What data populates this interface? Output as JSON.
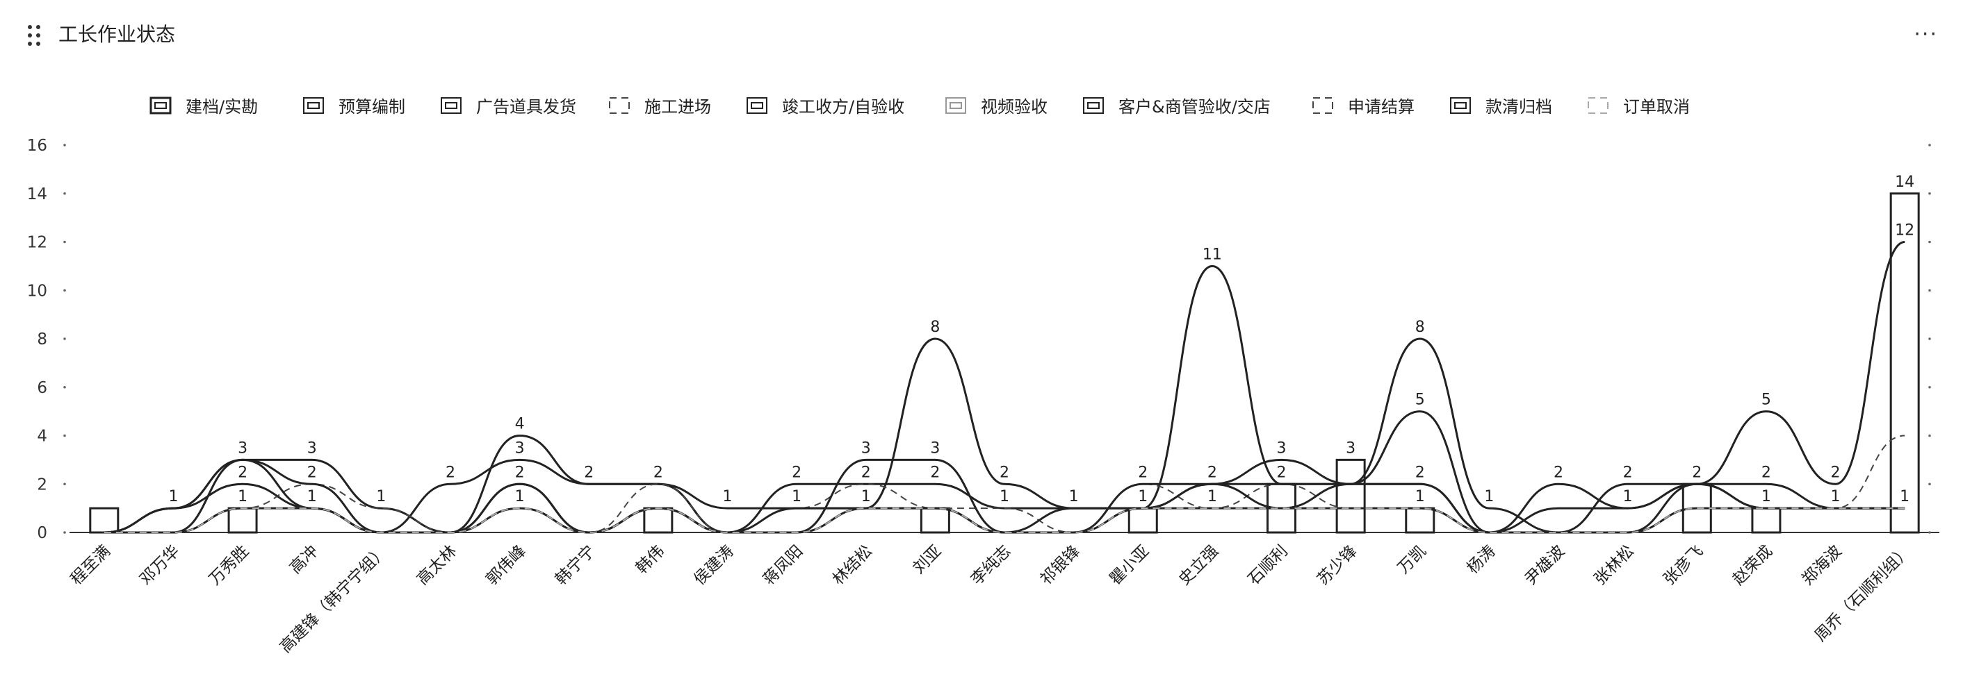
{
  "panel": {
    "title": "工长作业状态",
    "more_label": "···",
    "drag_icon": "drag-handle-icon",
    "more_icon": "more-icon"
  },
  "chart_data": {
    "type": "line",
    "title": "",
    "xlabel": "",
    "ylabel": "",
    "ylim": [
      0,
      16
    ],
    "yticks": [
      0,
      2,
      4,
      6,
      8,
      10,
      12,
      14,
      16
    ],
    "grid": false,
    "legend_position": "top",
    "categories": [
      "程至满",
      "邓万华",
      "万秀胜",
      "高冲",
      "高建锋（韩宁宁组）",
      "高太林",
      "郭伟峰",
      "韩宁宁",
      "韩伟",
      "侯建涛",
      "蒋凤阳",
      "林结松",
      "刘亚",
      "李纯志",
      "祁银锋",
      "瞿小亚",
      "史立强",
      "石顺利",
      "苏少锋",
      "万凯",
      "杨涛",
      "尹雄波",
      "张林松",
      "张彦飞",
      "赵荣成",
      "郑海波",
      "周乔（石顺利组）"
    ],
    "series": [
      {
        "name": "建档/实勘",
        "style": "bar",
        "values": [
          1,
          0,
          1,
          0,
          0,
          0,
          0,
          0,
          1,
          0,
          0,
          0,
          1,
          0,
          0,
          1,
          0,
          2,
          3,
          1,
          0,
          0,
          0,
          2,
          1,
          0,
          14
        ]
      },
      {
        "name": "预算编制",
        "style": "solid",
        "values": [
          0,
          1,
          2,
          1,
          0,
          2,
          3,
          2,
          2,
          0,
          2,
          2,
          2,
          1,
          1,
          1,
          2,
          3,
          2,
          5,
          0,
          2,
          1,
          2,
          2,
          1,
          1
        ]
      },
      {
        "name": "广告道具发货",
        "style": "solid",
        "values": [
          0,
          1,
          3,
          3,
          1,
          0,
          4,
          2,
          2,
          1,
          1,
          1,
          8,
          2,
          1,
          1,
          11,
          2,
          2,
          8,
          1,
          0,
          2,
          2,
          5,
          2,
          12
        ]
      },
      {
        "name": "施工进场",
        "style": "dashed",
        "values": [
          0,
          0,
          1,
          2,
          1,
          0,
          2,
          0,
          2,
          0,
          1,
          2,
          1,
          1,
          0,
          2,
          1,
          2,
          1,
          1,
          0,
          0,
          0,
          2,
          1,
          1,
          4
        ]
      },
      {
        "name": "竣工收方/自验收",
        "style": "solid",
        "values": [
          0,
          0,
          3,
          2,
          0,
          0,
          2,
          0,
          1,
          0,
          0,
          3,
          3,
          0,
          0,
          2,
          2,
          2,
          2,
          2,
          0,
          0,
          0,
          2,
          1,
          1,
          1
        ]
      },
      {
        "name": "视频验收",
        "style": "solid-light",
        "values": [
          0,
          0,
          1,
          1,
          0,
          0,
          1,
          0,
          1,
          0,
          0,
          1,
          1,
          0,
          0,
          1,
          1,
          1,
          1,
          1,
          0,
          0,
          0,
          1,
          1,
          1,
          1
        ]
      },
      {
        "name": "客户&商管验收/交店",
        "style": "solid",
        "values": [
          0,
          1,
          3,
          1,
          0,
          0,
          2,
          0,
          1,
          0,
          1,
          1,
          1,
          0,
          1,
          1,
          2,
          1,
          2,
          2,
          0,
          1,
          1,
          2,
          1,
          1,
          1
        ]
      },
      {
        "name": "申请结算",
        "style": "dashed",
        "values": [
          0,
          0,
          1,
          1,
          0,
          0,
          1,
          0,
          1,
          0,
          0,
          1,
          1,
          0,
          0,
          1,
          1,
          1,
          1,
          1,
          0,
          0,
          0,
          1,
          1,
          1,
          1
        ]
      },
      {
        "name": "款清归档",
        "style": "solid",
        "values": [
          0,
          0,
          1,
          1,
          0,
          0,
          1,
          0,
          1,
          0,
          0,
          1,
          1,
          0,
          0,
          1,
          1,
          1,
          1,
          1,
          0,
          0,
          0,
          1,
          1,
          1,
          1
        ]
      },
      {
        "name": "订单取消",
        "style": "dashed-light",
        "values": [
          0,
          0,
          1,
          1,
          0,
          0,
          1,
          0,
          1,
          0,
          0,
          1,
          1,
          0,
          0,
          1,
          1,
          1,
          1,
          1,
          0,
          0,
          0,
          1,
          1,
          1,
          1
        ]
      }
    ],
    "point_labels": [
      {
        "category": 1,
        "value": 1,
        "text": "1"
      },
      {
        "category": 2,
        "value": 3,
        "text": "3"
      },
      {
        "category": 2,
        "value": 2,
        "text": "2"
      },
      {
        "category": 2,
        "value": 1,
        "text": "1"
      },
      {
        "category": 3,
        "value": 3,
        "text": "3"
      },
      {
        "category": 3,
        "value": 2,
        "text": "2"
      },
      {
        "category": 3,
        "value": 1,
        "text": "1"
      },
      {
        "category": 4,
        "value": 1,
        "text": "1"
      },
      {
        "category": 5,
        "value": 2,
        "text": "2"
      },
      {
        "category": 6,
        "value": 4,
        "text": "4"
      },
      {
        "category": 6,
        "value": 3,
        "text": "3"
      },
      {
        "category": 6,
        "value": 2,
        "text": "2"
      },
      {
        "category": 6,
        "value": 1,
        "text": "1"
      },
      {
        "category": 7,
        "value": 2,
        "text": "2"
      },
      {
        "category": 8,
        "value": 2,
        "text": "2"
      },
      {
        "category": 9,
        "value": 1,
        "text": "1"
      },
      {
        "category": 10,
        "value": 2,
        "text": "2"
      },
      {
        "category": 10,
        "value": 1,
        "text": "1"
      },
      {
        "category": 11,
        "value": 3,
        "text": "3"
      },
      {
        "category": 11,
        "value": 2,
        "text": "2"
      },
      {
        "category": 11,
        "value": 1,
        "text": "1"
      },
      {
        "category": 12,
        "value": 8,
        "text": "8"
      },
      {
        "category": 12,
        "value": 3,
        "text": "3"
      },
      {
        "category": 12,
        "value": 2,
        "text": "2"
      },
      {
        "category": 13,
        "value": 2,
        "text": "2"
      },
      {
        "category": 13,
        "value": 1,
        "text": "1"
      },
      {
        "category": 14,
        "value": 1,
        "text": "1"
      },
      {
        "category": 15,
        "value": 2,
        "text": "2"
      },
      {
        "category": 15,
        "value": 1,
        "text": "1"
      },
      {
        "category": 16,
        "value": 11,
        "text": "11"
      },
      {
        "category": 16,
        "value": 2,
        "text": "2"
      },
      {
        "category": 16,
        "value": 1,
        "text": "1"
      },
      {
        "category": 17,
        "value": 3,
        "text": "3"
      },
      {
        "category": 17,
        "value": 2,
        "text": "2"
      },
      {
        "category": 18,
        "value": 3,
        "text": "3"
      },
      {
        "category": 19,
        "value": 8,
        "text": "8"
      },
      {
        "category": 19,
        "value": 5,
        "text": "5"
      },
      {
        "category": 19,
        "value": 2,
        "text": "2"
      },
      {
        "category": 19,
        "value": 1,
        "text": "1"
      },
      {
        "category": 20,
        "value": 1,
        "text": "1"
      },
      {
        "category": 21,
        "value": 2,
        "text": "2"
      },
      {
        "category": 22,
        "value": 2,
        "text": "2"
      },
      {
        "category": 22,
        "value": 1,
        "text": "1"
      },
      {
        "category": 23,
        "value": 2,
        "text": "2"
      },
      {
        "category": 24,
        "value": 5,
        "text": "5"
      },
      {
        "category": 24,
        "value": 2,
        "text": "2"
      },
      {
        "category": 24,
        "value": 1,
        "text": "1"
      },
      {
        "category": 25,
        "value": 2,
        "text": "2"
      },
      {
        "category": 25,
        "value": 1,
        "text": "1"
      },
      {
        "category": 26,
        "value": 1,
        "text": "1"
      },
      {
        "category": 26,
        "value": 14,
        "text": "14"
      },
      {
        "category": 26,
        "value": 12,
        "text": "12"
      }
    ]
  }
}
